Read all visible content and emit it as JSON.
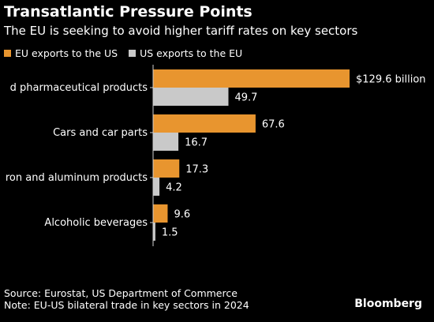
{
  "title": "Transatlantic Pressure Points",
  "subtitle": "The EU is seeking to avoid higher tariff rates on key sectors",
  "legend": {
    "eu_label": "EU exports to the US",
    "us_label": "US exports to the EU"
  },
  "colors": {
    "eu": "#E8952F",
    "us": "#C9C9C9",
    "background": "#000000",
    "text": "#FFFFFF",
    "axis": "#D0D0D0"
  },
  "chart_data": {
    "type": "bar",
    "orientation": "horizontal",
    "categories": [
      "Medicinal and pharmaceutical products",
      "Cars and car parts",
      "Iron and aluminum products",
      "Alcoholic beverages"
    ],
    "visible_category_labels": [
      "d pharmaceutical products",
      "Cars and car parts",
      "ron and aluminum products",
      "Alcoholic beverages"
    ],
    "series": [
      {
        "name": "EU exports to the US",
        "values": [
          129.6,
          67.6,
          17.3,
          9.6
        ]
      },
      {
        "name": "US exports to the EU",
        "values": [
          49.7,
          16.7,
          4.2,
          1.5
        ]
      }
    ],
    "value_labels": [
      [
        "$129.6 billion",
        "67.6",
        "17.3",
        "9.6"
      ],
      [
        "49.7",
        "16.7",
        "4.2",
        "1.5"
      ]
    ],
    "xlim": [
      0,
      129.6
    ],
    "grid": false,
    "legend_position": "top-left"
  },
  "footer": {
    "source": "Source: Eurostat, US Department of Commerce",
    "note": "Note: EU-US bilateral trade in key sectors in 2024"
  },
  "brand": "Bloomberg"
}
